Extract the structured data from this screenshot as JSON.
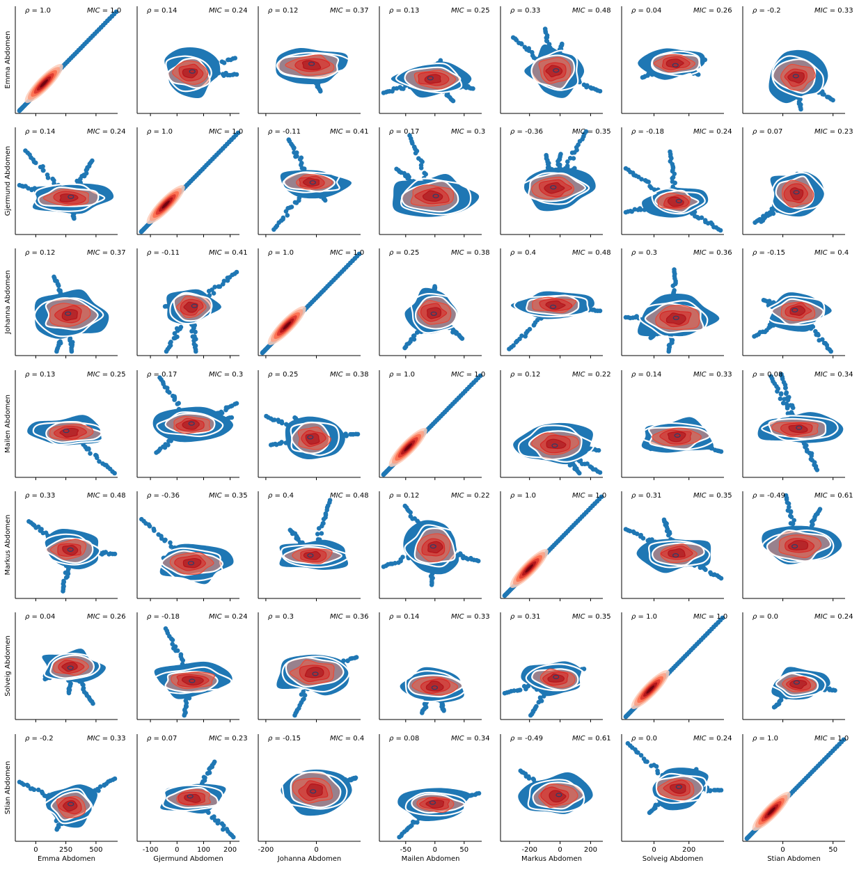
{
  "chart_data": {
    "type": "scatter",
    "variables": [
      "Emma Abdomen",
      "Gjermund Abdomen",
      "Johanna Abdomen",
      "Mailen Abdomen",
      "Markus Abdomen",
      "Solveig Abdomen",
      "Stian Abdomen"
    ],
    "rho_label": "ρ",
    "mic_label": "MIC",
    "rho": [
      [
        "1.0",
        "0.14",
        "0.12",
        "0.13",
        "0.33",
        "0.04",
        "-0.2"
      ],
      [
        "0.14",
        "1.0",
        "-0.11",
        "0.17",
        "-0.36",
        "-0.18",
        "0.07"
      ],
      [
        "0.12",
        "-0.11",
        "1.0",
        "0.25",
        "0.4",
        "0.3",
        "-0.15"
      ],
      [
        "0.13",
        "0.17",
        "0.25",
        "1.0",
        "0.12",
        "0.14",
        "0.08"
      ],
      [
        "0.33",
        "-0.36",
        "0.4",
        "0.12",
        "1.0",
        "0.31",
        "-0.49"
      ],
      [
        "0.04",
        "-0.18",
        "0.3",
        "0.14",
        "0.31",
        "1.0",
        "0.0"
      ],
      [
        "-0.2",
        "0.07",
        "-0.15",
        "0.08",
        "-0.49",
        "0.0",
        "1.0"
      ]
    ],
    "mic": [
      [
        "1.0",
        "0.24",
        "0.37",
        "0.25",
        "0.48",
        "0.26",
        "0.33"
      ],
      [
        "0.24",
        "1.0",
        "0.41",
        "0.3",
        "0.35",
        "0.24",
        "0.23"
      ],
      [
        "0.37",
        "0.41",
        "1.0",
        "0.38",
        "0.48",
        "0.36",
        "0.4"
      ],
      [
        "0.25",
        "0.3",
        "0.38",
        "1.0",
        "0.22",
        "0.33",
        "0.34"
      ],
      [
        "0.48",
        "0.35",
        "0.48",
        "0.22",
        "1.0",
        "0.35",
        "0.61"
      ],
      [
        "0.26",
        "0.24",
        "0.36",
        "0.33",
        "0.35",
        "1.0",
        "0.24"
      ],
      [
        "0.33",
        "0.23",
        "0.4",
        "0.34",
        "0.61",
        "0.24",
        "1.0"
      ]
    ],
    "x_axes": [
      {
        "xlabel": "Emma Abdomen",
        "xlim": [
          -170,
          680
        ],
        "ticks": [
          0,
          250,
          500
        ]
      },
      {
        "xlabel": "Gjermund Abdomen",
        "xlim": [
          -150,
          235
        ],
        "ticks": [
          -100,
          0,
          100,
          200
        ]
      },
      {
        "xlabel": "Johanna Abdomen",
        "xlim": [
          -230,
          175
        ],
        "ticks": [
          -200,
          0
        ]
      },
      {
        "xlabel": "Mailen Abdomen",
        "xlim": [
          -95,
          80
        ],
        "ticks": [
          -50,
          0,
          50
        ]
      },
      {
        "xlabel": "Markus Abdomen",
        "xlim": [
          -390,
          280
        ],
        "ticks": [
          -200,
          0,
          200
        ]
      },
      {
        "xlabel": "Solveig Abdomen",
        "xlim": [
          -185,
          400
        ],
        "ticks": [
          0,
          200
        ]
      },
      {
        "xlabel": "Stian Abdomen",
        "xlim": [
          -40,
          62
        ],
        "ticks": [
          0,
          50
        ]
      }
    ],
    "y_axes": [
      {
        "ylabel": "Emma Abdomen"
      },
      {
        "ylabel": "Gjermund Abdomen"
      },
      {
        "ylabel": "Johanna Abdomen"
      },
      {
        "ylabel": "Mailen Abdomen"
      },
      {
        "ylabel": "Markus Abdomen"
      },
      {
        "ylabel": "Solveig Abdomen"
      },
      {
        "ylabel": "Stian Abdomen"
      }
    ],
    "point_color": "#1f77b4",
    "kde_colormap": [
      "#fff5f0",
      "#fcbba1",
      "#fb6a4a",
      "#cb181d",
      "#67000d"
    ],
    "kde_inner_line_color": "#2c3e6b",
    "contour_outline_color": "#ffffff",
    "grid": false
  }
}
